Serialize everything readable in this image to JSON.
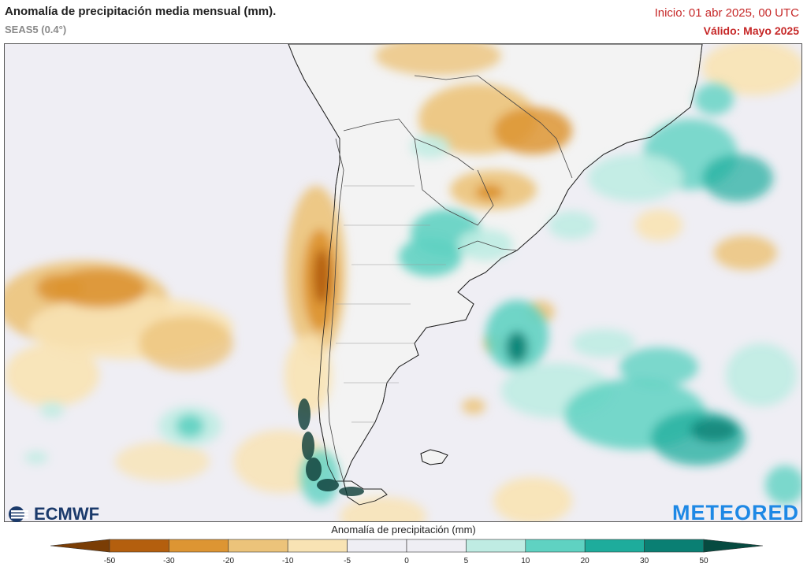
{
  "header": {
    "title": "Anomalía de precipitación media mensual (mm).",
    "subtitle": "SEAS5 (0.4°)",
    "init_time": "Inicio: 01 abr 2025, 00 UTC",
    "valid_time": "Válido: Mayo 2025"
  },
  "logos": {
    "ecmwf": "ECMWF",
    "meteored": "METEORED"
  },
  "legend": {
    "title": "Anomalía de precipitación (mm)",
    "ticks": [
      "-50",
      "-30",
      "-20",
      "-10",
      "-5",
      "0",
      "5",
      "10",
      "20",
      "30",
      "50"
    ],
    "colors": [
      "#7a3d05",
      "#b45f0e",
      "#dd9533",
      "#ecc37a",
      "#f8e3b4",
      "#efeef4",
      "#efeef4",
      "#bfece3",
      "#5fd2c2",
      "#1eac9c",
      "#0a7f73",
      "#064a40"
    ]
  },
  "map": {
    "ocean_color": "#efeef4",
    "land_color": "#f3f3f3"
  }
}
